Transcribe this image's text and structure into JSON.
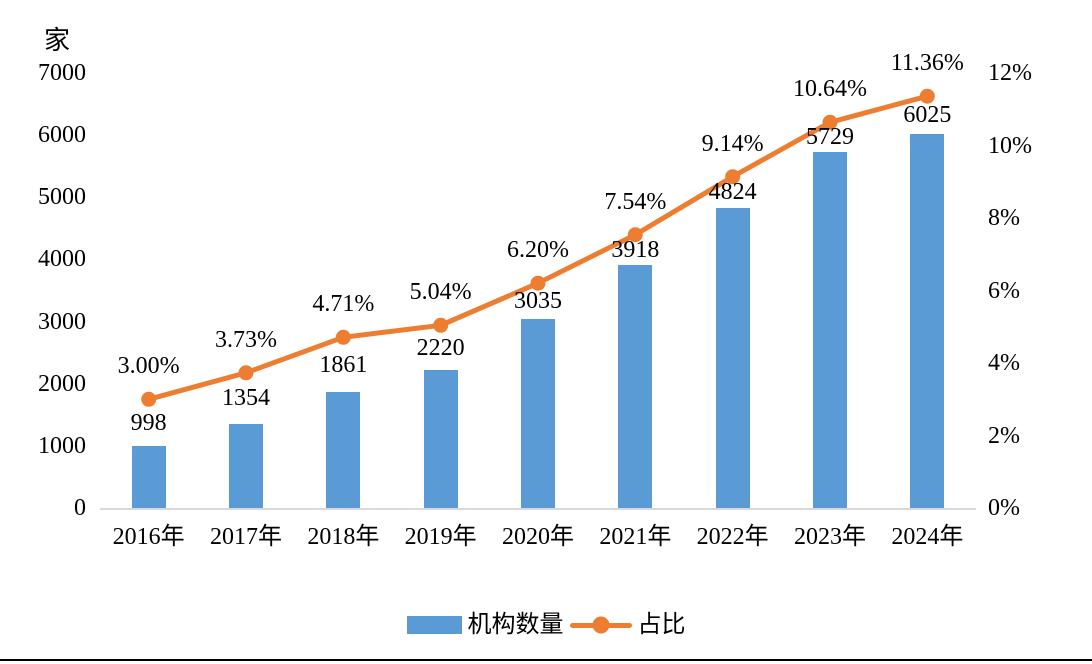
{
  "chart_data": {
    "type": "bar",
    "subtype": "combo-bar-line-dual-axis",
    "title": "",
    "categories": [
      "2016年",
      "2017年",
      "2018年",
      "2019年",
      "2020年",
      "2021年",
      "2022年",
      "2023年",
      "2024年"
    ],
    "series": [
      {
        "name": "机构数量",
        "chart_type": "bar",
        "axis": "left",
        "color": "#5B9BD5",
        "values": [
          998,
          1354,
          1861,
          2220,
          3035,
          3918,
          4824,
          5729,
          6025
        ],
        "labels": [
          "998",
          "1354",
          "1861",
          "2220",
          "3035",
          "3918",
          "4824",
          "5729",
          "6025"
        ]
      },
      {
        "name": "占比",
        "chart_type": "line",
        "axis": "right",
        "color": "#ED7D31",
        "values": [
          3.0,
          3.73,
          4.71,
          5.04,
          6.2,
          7.54,
          9.14,
          10.64,
          11.36
        ],
        "labels": [
          "3.00%",
          "3.73%",
          "4.71%",
          "5.04%",
          "6.20%",
          "7.54%",
          "9.14%",
          "10.64%",
          "11.36%"
        ]
      }
    ],
    "left_axis": {
      "unit": "家",
      "min": 0,
      "max": 7000,
      "step": 1000,
      "ticks": [
        "0",
        "1000",
        "2000",
        "3000",
        "4000",
        "5000",
        "6000",
        "7000"
      ]
    },
    "right_axis": {
      "min": 0,
      "max": 12,
      "step": 2,
      "ticks": [
        "0%",
        "2%",
        "4%",
        "6%",
        "8%",
        "10%",
        "12%"
      ]
    },
    "grid": false,
    "legend_position": "bottom",
    "legend": [
      "机构数量",
      "占比"
    ],
    "axis_line_color": "#D9D9D9"
  }
}
